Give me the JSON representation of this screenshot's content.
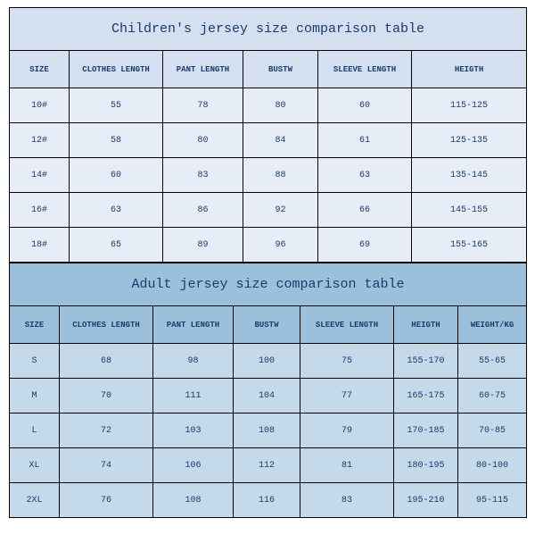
{
  "children": {
    "title": "Children's jersey size comparison table",
    "columns": [
      "SIZE",
      "CLOTHES LENGTH",
      "PANT LENGTH",
      "BUSTW",
      "SLEEVE LENGTH",
      "HEIGTH"
    ],
    "rows": [
      [
        "10#",
        "55",
        "78",
        "80",
        "60",
        "115-125"
      ],
      [
        "12#",
        "58",
        "80",
        "84",
        "61",
        "125-135"
      ],
      [
        "14#",
        "60",
        "83",
        "88",
        "63",
        "135-145"
      ],
      [
        "16#",
        "63",
        "86",
        "92",
        "66",
        "145-155"
      ],
      [
        "18#",
        "65",
        "89",
        "96",
        "69",
        "155-165"
      ]
    ]
  },
  "adult": {
    "title": "Adult jersey size comparison table",
    "columns": [
      "SIZE",
      "CLOTHES LENGTH",
      "PANT LENGTH",
      "BUSTW",
      "SLEEVE LENGTH",
      "HEIGTH",
      "WEIGHT/KG"
    ],
    "rows": [
      [
        "S",
        "68",
        "98",
        "100",
        "75",
        "155-170",
        "55-65"
      ],
      [
        "M",
        "70",
        "111",
        "104",
        "77",
        "165-175",
        "60-75"
      ],
      [
        "L",
        "72",
        "103",
        "108",
        "79",
        "170-185",
        "70-85"
      ],
      [
        "XL",
        "74",
        "106",
        "112",
        "81",
        "180-195",
        "80-100"
      ],
      [
        "2XL",
        "76",
        "108",
        "116",
        "83",
        "195-210",
        "95-115"
      ]
    ]
  },
  "style": {
    "children_title_bg": "#d4dff0",
    "children_row_bg": "#e7edf6",
    "adult_title_bg": "#9ac0dc",
    "adult_row_bg": "#c4d9e9",
    "border_color": "#000000",
    "text_color": "#1a3a6e",
    "font_family": "Courier New, monospace",
    "title_fontsize": 15,
    "header_fontsize": 9,
    "cell_fontsize": 10
  }
}
